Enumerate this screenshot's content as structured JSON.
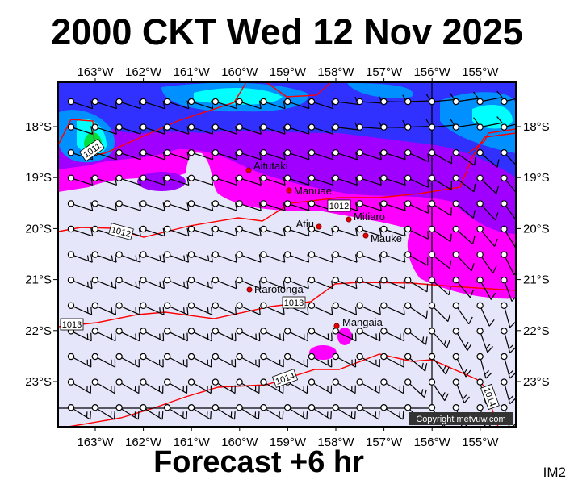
{
  "title": "2000 CKT Wed 12 Nov 2025",
  "footer": "Forecast +6 hr",
  "image_code": "IM2",
  "copyright": "Copyright metvuw.com",
  "lon_ticks": [
    "163°W",
    "162°W",
    "161°W",
    "160°W",
    "159°W",
    "158°W",
    "157°W",
    "156°W",
    "155°W"
  ],
  "lat_ticks": [
    "18°S",
    "19°S",
    "20°S",
    "21°S",
    "22°S",
    "23°S"
  ],
  "places": [
    {
      "name": "Aitutaki"
    },
    {
      "name": "Manuae"
    },
    {
      "name": "Mitiaro"
    },
    {
      "name": "Atiu"
    },
    {
      "name": "Mauke"
    },
    {
      "name": "Rarotonga"
    },
    {
      "name": "Mangaia"
    }
  ],
  "isobar_labels": [
    "1011",
    "1012",
    "1012",
    "1013",
    "1013",
    "1014",
    "1014"
  ],
  "colors": {
    "lavender": "#e6e6fa",
    "magenta": "#ff00ff",
    "purple": "#a000ff",
    "blue": "#3030ff",
    "skyblue": "#0090ff",
    "cyan": "#00ffff",
    "green": "#00e040",
    "isobar": "#ff0000",
    "place": "#e00000"
  }
}
